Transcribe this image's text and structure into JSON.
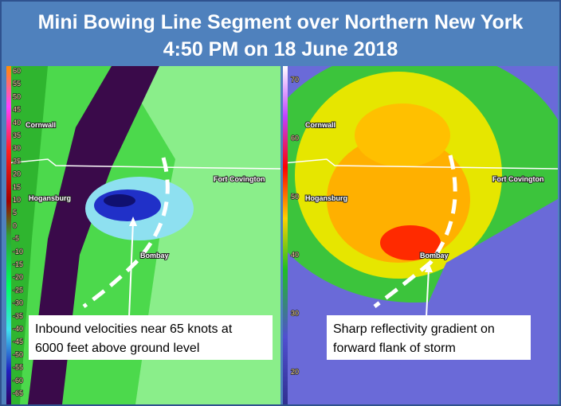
{
  "title": {
    "line1": "Mini Bowing Line Segment over Northern New York",
    "line2": "4:50 PM on 18 June 2018"
  },
  "velocity_panel": {
    "scale": [
      60,
      55,
      50,
      45,
      40,
      35,
      30,
      25,
      20,
      15,
      10,
      5,
      0,
      -5,
      -10,
      -15,
      -20,
      -25,
      -30,
      -35,
      -40,
      -45,
      -50,
      -55,
      -60,
      -65
    ],
    "places": [
      "Cornwall",
      "Hogansburg",
      "Fort Covington",
      "Bombay"
    ],
    "annotation": {
      "line1": "Inbound velocities near 65 knots at",
      "line2": "6000 feet above ground level"
    }
  },
  "reflectivity_panel": {
    "scale": [
      70,
      60,
      50,
      40,
      30,
      20
    ],
    "places": [
      "Cornwall",
      "Hogansburg",
      "Fort Covington",
      "Bombay"
    ],
    "annotation": {
      "line1": "Sharp reflectivity gradient on",
      "line2": "forward flank of storm"
    }
  }
}
